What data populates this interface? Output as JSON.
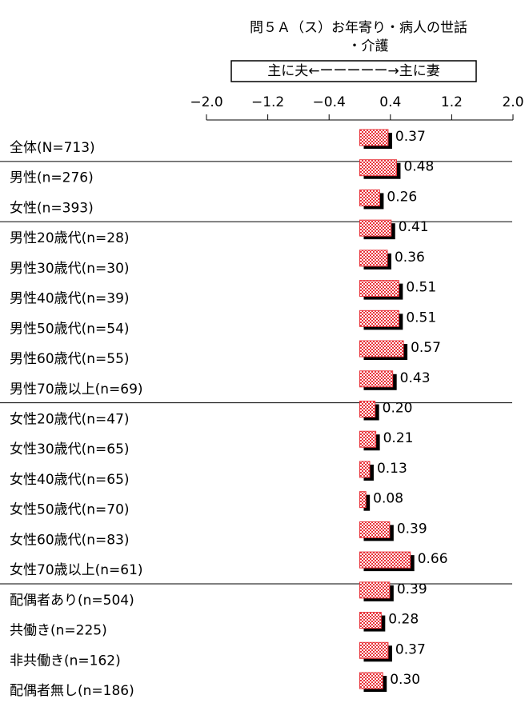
{
  "chart_data": {
    "type": "bar",
    "orientation": "horizontal",
    "title": [
      "問５Ａ（ス）お年寄り・病人の世話",
      "・介護"
    ],
    "subtitle": "主に夫←ーーーーー→主に妻",
    "categories": [
      "全体(N=713)",
      "男性(n=276)",
      "女性(n=393)",
      "男性20歳代(n=28)",
      "男性30歳代(n=30)",
      "男性40歳代(n=39)",
      "男性50歳代(n=54)",
      "男性60歳代(n=55)",
      "男性70歳以上(n=69)",
      "女性20歳代(n=47)",
      "女性30歳代(n=65)",
      "女性40歳代(n=65)",
      "女性50歳代(n=70)",
      "女性60歳代(n=83)",
      "女性70歳以上(n=61)",
      "配偶者あり(n=504)",
      "共働き(n=225)",
      "非共働き(n=162)",
      "配偶者無し(n=186)"
    ],
    "values": [
      0.37,
      0.48,
      0.26,
      0.41,
      0.36,
      0.51,
      0.51,
      0.57,
      0.43,
      0.2,
      0.21,
      0.13,
      0.08,
      0.39,
      0.66,
      0.39,
      0.28,
      0.37,
      0.3
    ],
    "value_labels": [
      "0.37",
      "0.48",
      "0.26",
      "0.41",
      "0.36",
      "0.51",
      "0.51",
      "0.57",
      "0.43",
      "0.20",
      "0.21",
      "0.13",
      "0.08",
      "0.39",
      "0.66",
      "0.39",
      "0.28",
      "0.37",
      "0.30"
    ],
    "color": "#e8333a",
    "xlim": [
      -2.0,
      2.0
    ],
    "xticks": [
      {
        "value": -2.0,
        "label": "−2.0"
      },
      {
        "value": -1.2,
        "label": "−1.2"
      },
      {
        "value": -0.4,
        "label": "−0.4"
      },
      {
        "value": 0.4,
        "label": "0.4"
      },
      {
        "value": 1.2,
        "label": "1.2"
      },
      {
        "value": 2.0,
        "label": "2.0"
      }
    ]
  }
}
